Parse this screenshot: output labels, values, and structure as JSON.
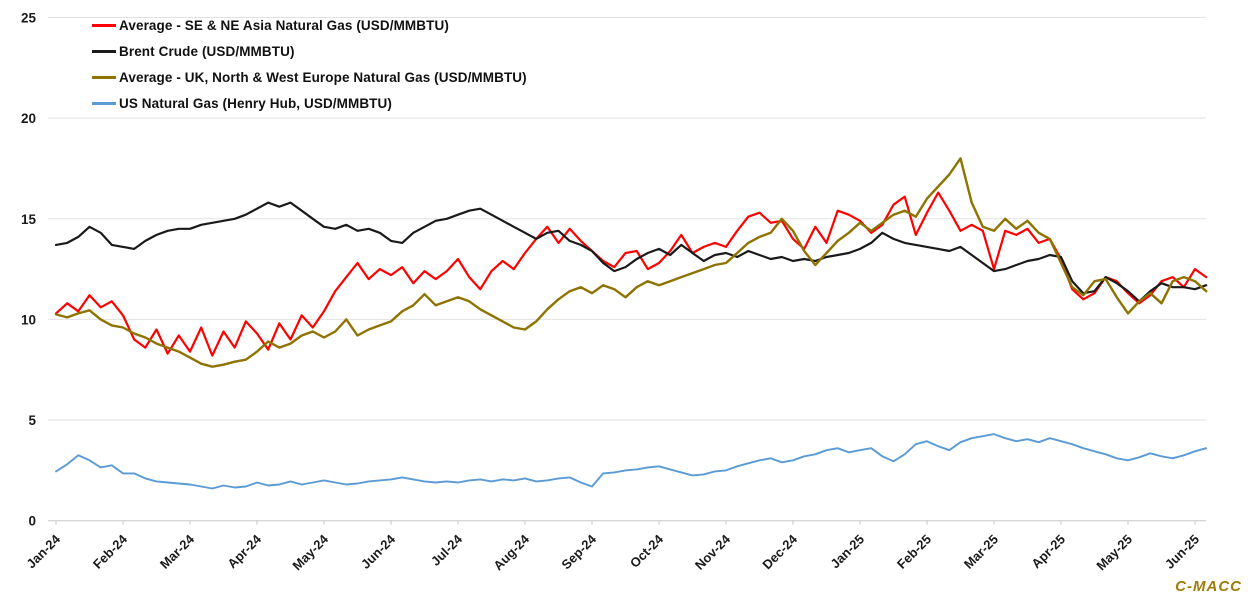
{
  "chart_data": {
    "type": "line",
    "title": "",
    "watermark": "C-MACC",
    "x_axis": {
      "labels": [
        "Jan-24",
        "Feb-24",
        "Mar-24",
        "Apr-24",
        "May-24",
        "Jun-24",
        "Jul-24",
        "Aug-24",
        "Sep-24",
        "Oct-24",
        "Nov-24",
        "Dec-24",
        "Jan-25",
        "Feb-25",
        "Mar-25",
        "Apr-25",
        "May-25",
        "Jun-25"
      ],
      "points_per_month": 6
    },
    "y_axis": {
      "min": 0,
      "max": 25,
      "ticks": [
        0,
        5,
        10,
        15,
        20,
        25
      ]
    },
    "grid": true,
    "legend_position": "top-left",
    "series": [
      {
        "name": "Average - SE & NE Asia Natural Gas (USD/MMBTU)",
        "color": "#FF0000",
        "width": 2.2,
        "values": [
          10.3,
          10.8,
          10.4,
          11.2,
          10.6,
          10.9,
          10.2,
          9.0,
          8.6,
          9.5,
          8.3,
          9.2,
          8.4,
          9.6,
          8.2,
          9.4,
          8.6,
          9.9,
          9.3,
          8.5,
          9.8,
          9.0,
          10.2,
          9.6,
          10.4,
          11.4,
          12.1,
          12.8,
          12.0,
          12.5,
          12.2,
          12.6,
          11.8,
          12.4,
          12.0,
          12.4,
          13.0,
          12.1,
          11.5,
          12.4,
          12.9,
          12.5,
          13.3,
          14.0,
          14.6,
          13.8,
          14.5,
          13.9,
          13.4,
          12.9,
          12.6,
          13.3,
          13.4,
          12.5,
          12.8,
          13.4,
          14.2,
          13.3,
          13.6,
          13.8,
          13.6,
          14.4,
          15.1,
          15.3,
          14.8,
          14.9,
          14.0,
          13.5,
          14.6,
          13.8,
          15.4,
          15.2,
          14.9,
          14.3,
          14.7,
          15.7,
          16.1,
          14.2,
          15.3,
          16.3,
          15.4,
          14.4,
          14.7,
          14.4,
          12.5,
          14.4,
          14.2,
          14.5,
          13.8,
          14.0,
          13.0,
          11.5,
          11.0,
          11.3,
          12.1,
          11.9,
          11.3,
          10.8,
          11.2,
          11.9,
          12.1,
          11.6,
          12.5,
          12.1
        ]
      },
      {
        "name": "Brent Crude (USD/MMBTU)",
        "color": "#1A1A1A",
        "width": 2.2,
        "values": [
          13.7,
          13.8,
          14.1,
          14.6,
          14.3,
          13.7,
          13.6,
          13.5,
          13.9,
          14.2,
          14.4,
          14.5,
          14.5,
          14.7,
          14.8,
          14.9,
          15.0,
          15.2,
          15.5,
          15.8,
          15.6,
          15.8,
          15.4,
          15.0,
          14.6,
          14.5,
          14.7,
          14.4,
          14.5,
          14.3,
          13.9,
          13.8,
          14.3,
          14.6,
          14.9,
          15.0,
          15.2,
          15.4,
          15.5,
          15.2,
          14.9,
          14.6,
          14.3,
          14.0,
          14.3,
          14.4,
          13.9,
          13.7,
          13.4,
          12.8,
          12.4,
          12.6,
          13.0,
          13.3,
          13.5,
          13.2,
          13.7,
          13.3,
          12.9,
          13.2,
          13.3,
          13.1,
          13.4,
          13.2,
          13.0,
          13.1,
          12.9,
          13.0,
          12.9,
          13.1,
          13.2,
          13.3,
          13.5,
          13.8,
          14.3,
          14.0,
          13.8,
          13.7,
          13.6,
          13.5,
          13.4,
          13.6,
          13.2,
          12.8,
          12.4,
          12.5,
          12.7,
          12.9,
          13.0,
          13.2,
          13.1,
          11.9,
          11.3,
          11.4,
          12.1,
          11.8,
          11.4,
          10.9,
          11.4,
          11.8,
          11.6,
          11.6,
          11.5,
          11.7
        ]
      },
      {
        "name": "Average - UK, North & West Europe Natural Gas (USD/MMBTU)",
        "color": "#8E7300",
        "width": 2.4,
        "values": [
          10.25,
          10.1,
          10.3,
          10.45,
          10.0,
          9.7,
          9.6,
          9.3,
          9.1,
          8.8,
          8.6,
          8.4,
          8.1,
          7.8,
          7.65,
          7.75,
          7.9,
          8.0,
          8.4,
          8.9,
          8.6,
          8.8,
          9.2,
          9.4,
          9.1,
          9.4,
          10.0,
          9.2,
          9.5,
          9.7,
          9.9,
          10.4,
          10.7,
          11.25,
          10.7,
          10.9,
          11.1,
          10.9,
          10.5,
          10.2,
          9.9,
          9.6,
          9.5,
          9.9,
          10.5,
          11.0,
          11.4,
          11.6,
          11.3,
          11.7,
          11.5,
          11.1,
          11.6,
          11.9,
          11.7,
          11.9,
          12.1,
          12.3,
          12.5,
          12.7,
          12.8,
          13.3,
          13.8,
          14.1,
          14.3,
          15.0,
          14.4,
          13.4,
          12.7,
          13.3,
          13.9,
          14.3,
          14.8,
          14.4,
          14.8,
          15.2,
          15.4,
          15.1,
          16.0,
          16.6,
          17.2,
          18.0,
          15.8,
          14.6,
          14.4,
          15.0,
          14.5,
          14.9,
          14.3,
          14.0,
          12.8,
          11.6,
          11.2,
          11.9,
          12.0,
          11.1,
          10.3,
          10.9,
          11.3,
          10.8,
          11.9,
          12.1,
          11.9,
          11.4
        ]
      },
      {
        "name": "US Natural Gas (Henry Hub, USD/MMBTU)",
        "color": "#5B9BD5",
        "width": 1.9,
        "values": [
          2.45,
          2.8,
          3.25,
          3.0,
          2.65,
          2.75,
          2.35,
          2.35,
          2.1,
          1.95,
          1.9,
          1.85,
          1.8,
          1.7,
          1.6,
          1.75,
          1.65,
          1.7,
          1.9,
          1.75,
          1.8,
          1.95,
          1.8,
          1.9,
          2.0,
          1.9,
          1.8,
          1.85,
          1.95,
          2.0,
          2.05,
          2.15,
          2.05,
          1.95,
          1.9,
          1.95,
          1.9,
          2.0,
          2.05,
          1.95,
          2.05,
          2.0,
          2.1,
          1.95,
          2.0,
          2.1,
          2.15,
          1.9,
          1.7,
          2.35,
          2.4,
          2.5,
          2.55,
          2.65,
          2.7,
          2.55,
          2.4,
          2.25,
          2.3,
          2.45,
          2.5,
          2.7,
          2.85,
          3.0,
          3.1,
          2.9,
          3.0,
          3.2,
          3.3,
          3.5,
          3.6,
          3.4,
          3.5,
          3.6,
          3.2,
          2.95,
          3.3,
          3.8,
          3.95,
          3.7,
          3.5,
          3.9,
          4.1,
          4.2,
          4.3,
          4.1,
          3.95,
          4.05,
          3.9,
          4.1,
          3.95,
          3.8,
          3.6,
          3.45,
          3.3,
          3.1,
          3.0,
          3.15,
          3.35,
          3.2,
          3.1,
          3.25,
          3.45,
          3.6
        ]
      }
    ],
    "colors": {
      "gridline": "#E2E2E2",
      "axis_line": "#C8C8C8",
      "label": "#1A1A1A",
      "watermark": "#9E7C0A",
      "background": "#FFFFFF"
    }
  }
}
